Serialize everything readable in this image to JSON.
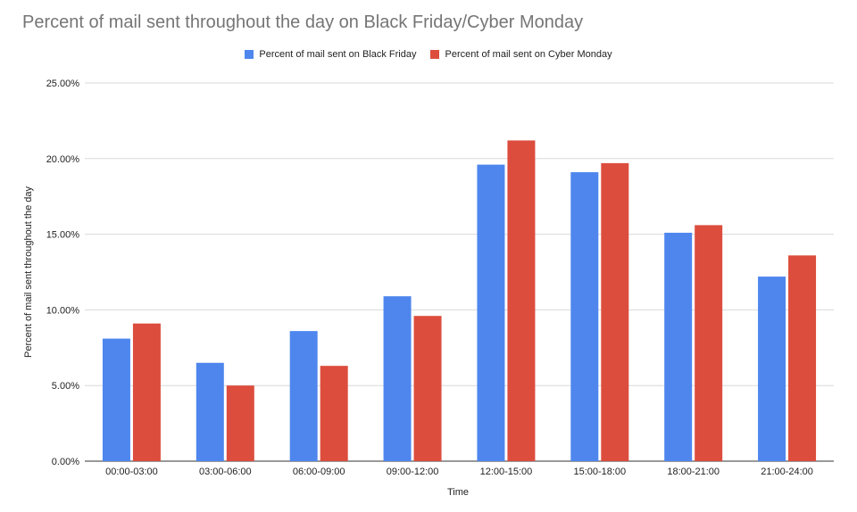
{
  "chart_data": {
    "type": "bar",
    "title": "Percent of mail sent throughout the day on Black Friday/Cyber Monday",
    "xlabel": "Time",
    "ylabel": "Percent of mail sent throughout the day",
    "categories": [
      "00:00-03:00",
      "03:00-06:00",
      "06:00-09:00",
      "09:00-12:00",
      "12:00-15:00",
      "15:00-18:00",
      "18:00-21:00",
      "21:00-24:00"
    ],
    "series": [
      {
        "name": "Percent of mail sent on Black Friday",
        "color": "#4e86ee",
        "values": [
          8.1,
          6.5,
          8.6,
          10.9,
          19.6,
          19.1,
          15.1,
          12.2
        ]
      },
      {
        "name": "Percent of mail sent on Cyber Monday",
        "color": "#dc4d3d",
        "values": [
          9.1,
          5.0,
          6.3,
          9.6,
          21.2,
          19.7,
          15.6,
          13.6
        ]
      }
    ],
    "ylim": [
      0,
      25
    ],
    "yticks": [
      "0.00%",
      "5.00%",
      "10.00%",
      "15.00%",
      "20.00%",
      "25.00%"
    ],
    "grid": true,
    "legend_position": "top"
  }
}
